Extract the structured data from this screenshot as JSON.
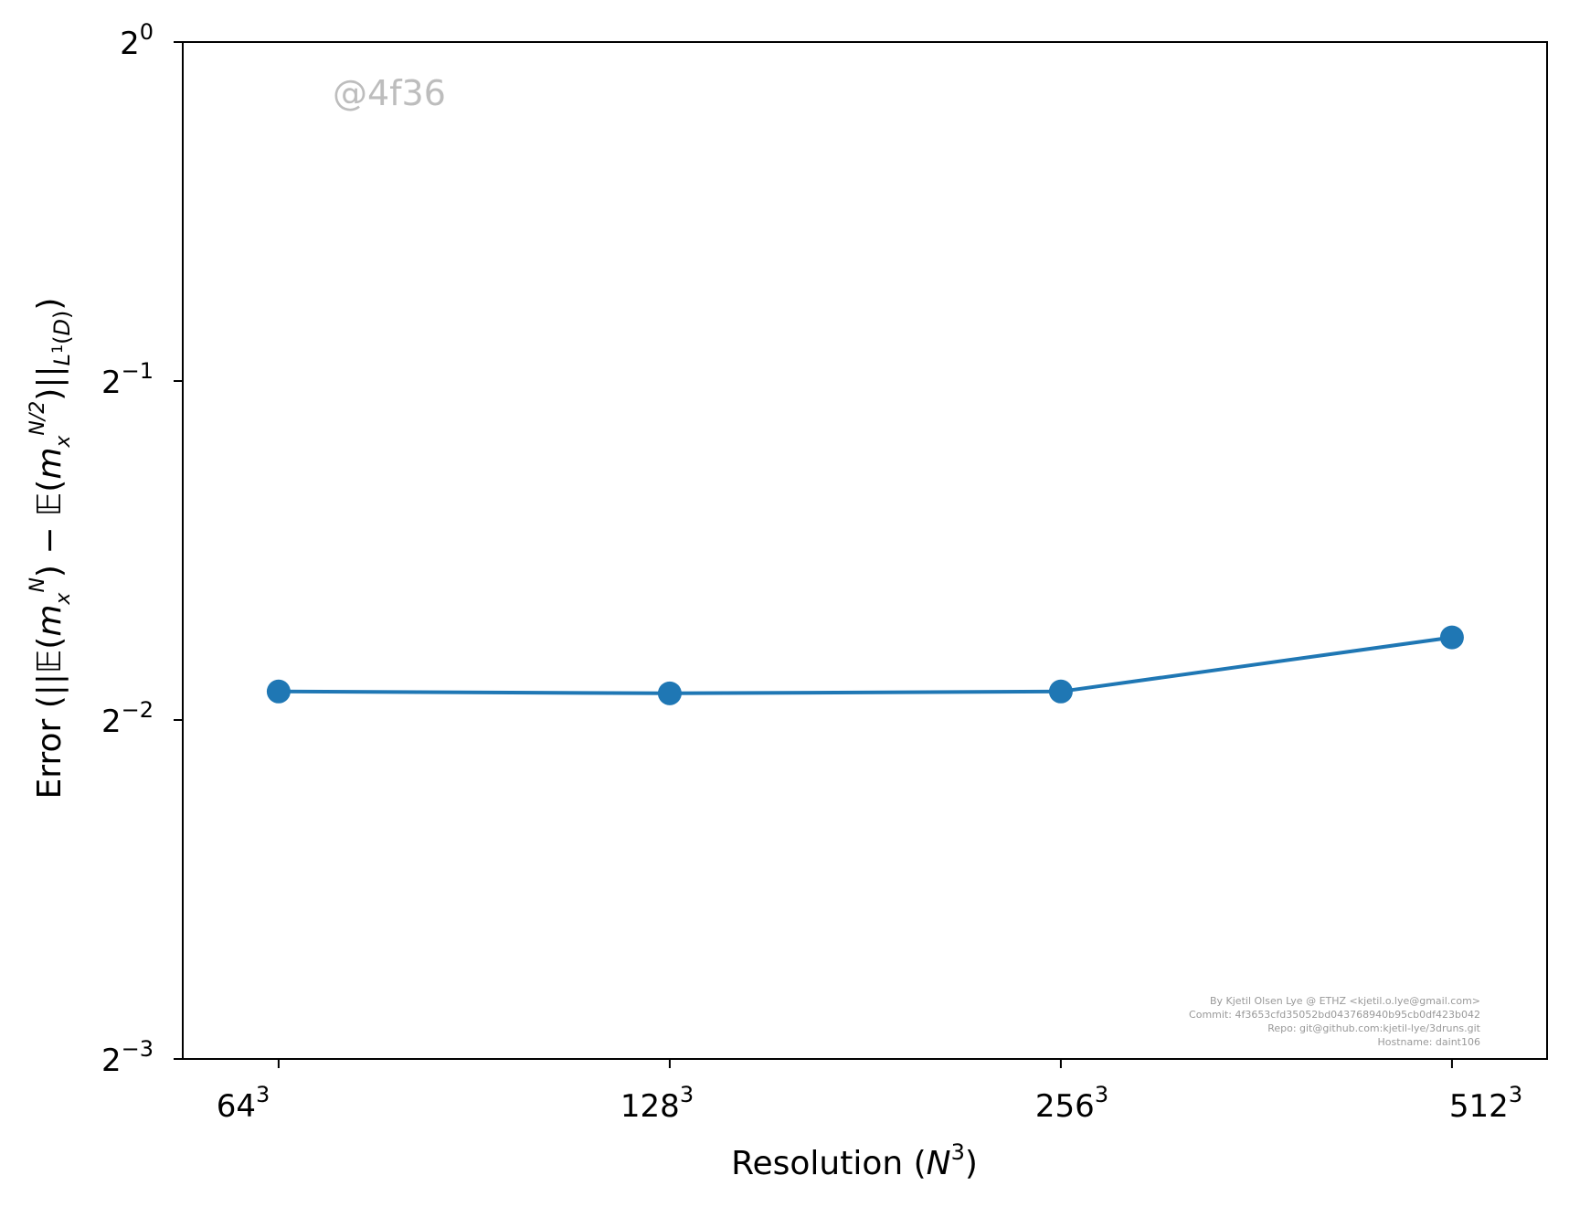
{
  "chart_data": {
    "type": "line",
    "title": "",
    "xlabel": "Resolution (N³)",
    "ylabel": "Error (||𝔼(mₓᴺ) − 𝔼(mₓᴺᐟ²)||L¹(D))",
    "x_scale": "log2",
    "y_scale": "log2",
    "xlim": [
      54,
      606
    ],
    "ylim": [
      0.125,
      1
    ],
    "x_tick_labels": [
      "64³",
      "128³",
      "256³",
      "512³"
    ],
    "y_tick_labels": [
      "2⁰",
      "2⁻¹",
      "2⁻²",
      "2⁻³"
    ],
    "y_tick_values": [
      1,
      0.5,
      0.25,
      0.125
    ],
    "series": [
      {
        "color": "#1f77b4",
        "marker": "circle",
        "x": [
          64,
          128,
          256,
          512
        ],
        "y": [
          0.265,
          0.264,
          0.265,
          0.296
        ]
      }
    ],
    "grid": false,
    "legend": "none"
  },
  "watermark": "@4f36",
  "footer": {
    "lines": [
      "By Kjetil Olsen Lye @ ETHZ <kjetil.o.lye@gmail.com>",
      "Commit: 4f3653cfd35052bd043768940b95cb0df423b042",
      "Repo: git@github.com:kjetil-lye/3druns.git",
      "Hostname: daint106"
    ]
  }
}
